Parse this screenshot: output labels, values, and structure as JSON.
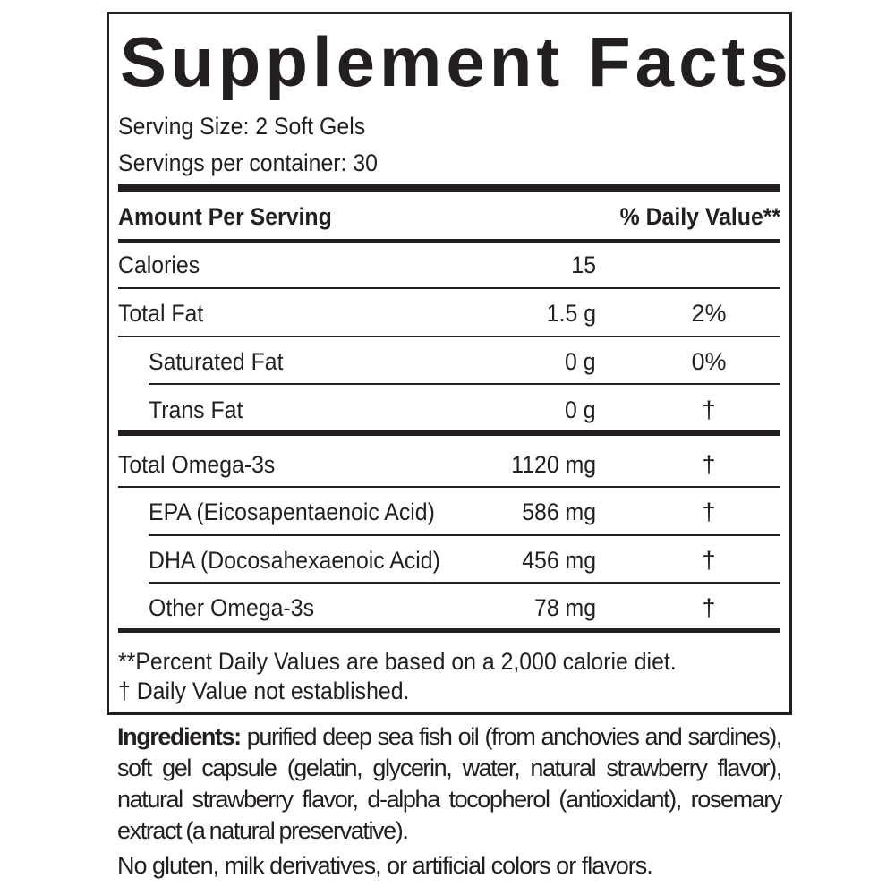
{
  "title": "Supplement Facts",
  "serving_size": "Serving Size: 2 Soft Gels",
  "servings_per_container": "Servings per container: 30",
  "header": {
    "amount": "Amount Per Serving",
    "daily_value": "% Daily Value**"
  },
  "rows": [
    {
      "label": "Calories",
      "amount": "15",
      "dv": ""
    },
    {
      "label": "Total Fat",
      "amount": "1.5 g",
      "dv": "2%"
    },
    {
      "label": "Saturated Fat",
      "amount": "0 g",
      "dv": "0%"
    },
    {
      "label": "Trans Fat",
      "amount": "0 g",
      "dv": "†"
    },
    {
      "label": "Total Omega-3s",
      "amount": "1120 mg",
      "dv": "†"
    },
    {
      "label": "EPA (Eicosapentaenoic Acid)",
      "amount": "586 mg",
      "dv": "†"
    },
    {
      "label": "DHA (Docosahexaenoic Acid)",
      "amount": "456 mg",
      "dv": "†"
    },
    {
      "label": "Other Omega-3s",
      "amount": "78 mg",
      "dv": "†"
    }
  ],
  "footnotes": [
    "**Percent Daily Values are based on a 2,000 calorie diet.",
    "†  Daily Value not established."
  ],
  "ingredients": {
    "label": "Ingredients:",
    "text": " purified deep sea fish oil (from anchovies and sardines), soft gel capsule (gelatin, glycerin, water, natural strawberry flavor), natural strawberry flavor, d-alpha tocopherol (antioxidant), rosemary extract (a natural preservative)."
  },
  "allergen_note": "No gluten, milk derivatives, or artificial colors or flavors."
}
